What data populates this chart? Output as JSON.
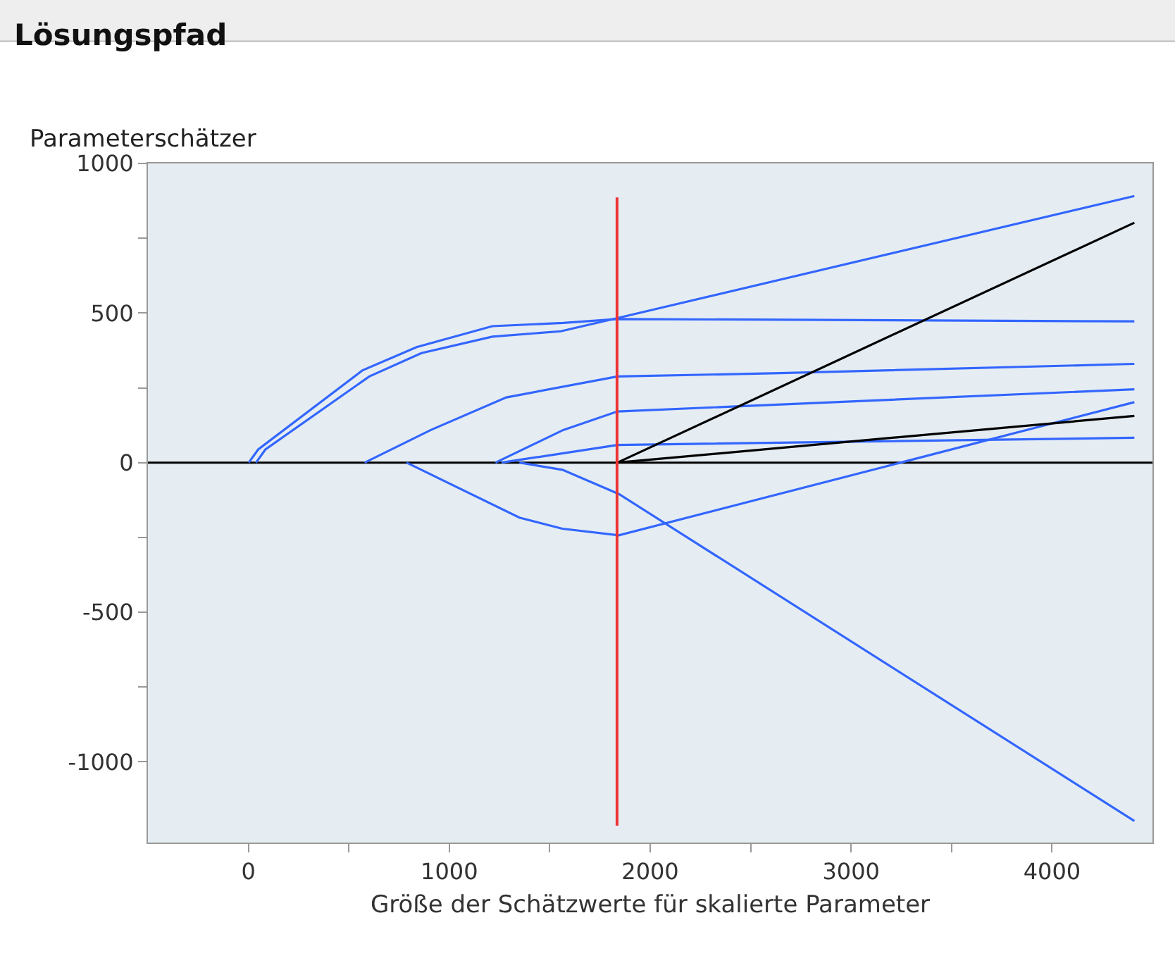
{
  "chart_data": {
    "type": "line",
    "title": "Lösungspfad",
    "ylabel": "Parameterschätzer",
    "xlabel": "Größe der Schätzwerte für skalierte Parameter",
    "xlim": [
      -500,
      4500
    ],
    "ylim": [
      -1270,
      1000
    ],
    "xticks": [
      0,
      {
        "value": 500,
        "label": null
      },
      1000,
      {
        "value": 1500,
        "label": null
      },
      2000,
      {
        "value": 2500,
        "label": null
      },
      3000,
      {
        "value": 3500,
        "label": null
      },
      4000
    ],
    "yticks": [
      -1000,
      {
        "value": -750,
        "label": null
      },
      -500,
      {
        "value": -250,
        "label": null
      },
      0,
      {
        "value": 250,
        "label": null
      },
      500,
      {
        "value": 750,
        "label": null
      },
      1000
    ],
    "grid": false,
    "marker": "none",
    "line_style": "solid",
    "ref_lines": [
      {
        "axis": "x",
        "value": 1835,
        "color": "#ee3333"
      },
      {
        "axis": "y",
        "value": 0,
        "color": "#000000"
      }
    ],
    "series": [
      {
        "color": "#3366ff",
        "x": [
          2,
          49,
          567,
          837,
          1214,
          1567,
          1837,
          4410
        ],
        "values": [
          0,
          44,
          308,
          386,
          456,
          467,
          480,
          472
        ]
      },
      {
        "color": "#3366ff",
        "x": [
          38,
          85,
          602,
          861,
          1214,
          1555,
          1837,
          4410
        ],
        "values": [
          0,
          44,
          288,
          366,
          421,
          439,
          483,
          891
        ]
      },
      {
        "color": "#3366ff",
        "x": [
          579,
          908,
          1284,
          1837,
          2647,
          4410
        ],
        "values": [
          0,
          109,
          218,
          288,
          299,
          330
        ]
      },
      {
        "color": "#3366ff",
        "x": [
          1230,
          1567,
          1837,
          4410
        ],
        "values": [
          0,
          109,
          171,
          245
        ]
      },
      {
        "color": "#3366ff",
        "x": [
          1260,
          1837,
          4410
        ],
        "values": [
          0,
          59,
          83
        ]
      },
      {
        "color": "#3366ff",
        "x": [
          787,
          1349,
          1563,
          1844,
          3247,
          4410
        ],
        "values": [
          0,
          -184,
          -221,
          -243,
          0,
          202
        ]
      },
      {
        "color": "#3366ff",
        "x": [
          1349,
          1563,
          1844,
          4410
        ],
        "values": [
          0,
          -24,
          -105,
          -1198
        ]
      },
      {
        "color": "#000000",
        "x": [
          1837,
          4410
        ],
        "values": [
          0,
          802
        ]
      },
      {
        "color": "#000000",
        "x": [
          1837,
          4410
        ],
        "values": [
          0,
          156
        ]
      }
    ]
  }
}
